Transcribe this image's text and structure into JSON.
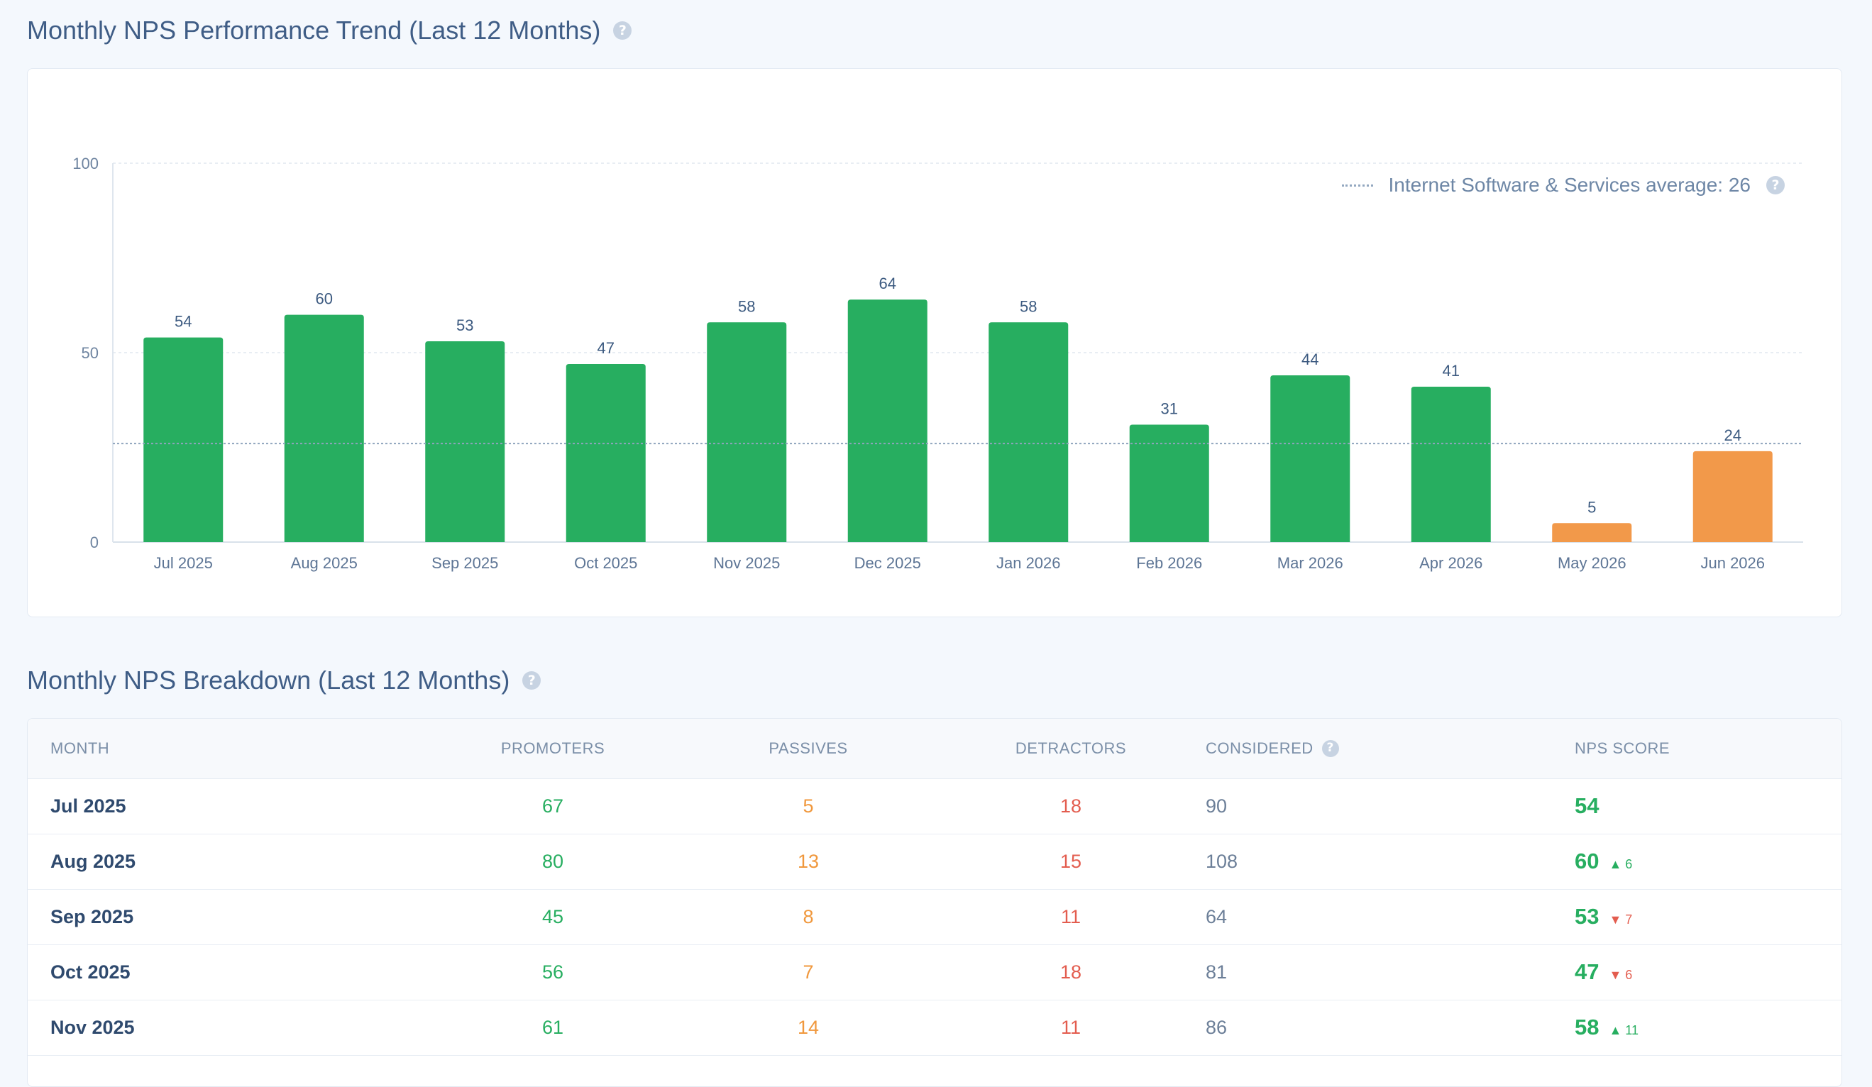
{
  "trend_section": {
    "title": "Monthly NPS Performance Trend (Last 12 Months)",
    "help_icon": "?"
  },
  "legend": {
    "label": "Internet Software & Services average: 26",
    "help_icon": "?"
  },
  "chart_data": {
    "type": "bar",
    "categories": [
      "Jul 2025",
      "Aug 2025",
      "Sep 2025",
      "Oct 2025",
      "Nov 2025",
      "Dec 2025",
      "Jan 2026",
      "Feb 2026",
      "Mar 2026",
      "Apr 2026",
      "May 2026",
      "Jun 2026"
    ],
    "values": [
      54,
      60,
      53,
      47,
      58,
      64,
      58,
      31,
      44,
      41,
      5,
      24
    ],
    "bar_colors": [
      "#27ae60",
      "#27ae60",
      "#27ae60",
      "#27ae60",
      "#27ae60",
      "#27ae60",
      "#27ae60",
      "#27ae60",
      "#27ae60",
      "#27ae60",
      "#f2994a",
      "#f2994a"
    ],
    "yticks": [
      0,
      50,
      100
    ],
    "ylim": [
      0,
      100
    ],
    "reference_line": {
      "value": 26
    },
    "grid": true,
    "legend_position": "top-right"
  },
  "breakdown_section": {
    "title": "Monthly NPS Breakdown (Last 12 Months)",
    "help_icon": "?"
  },
  "table": {
    "headers": {
      "month": "MONTH",
      "promoters": "PROMOTERS",
      "passives": "PASSIVES",
      "detractors": "DETRACTORS",
      "considered": "CONSIDERED",
      "nps_score": "NPS SCORE"
    },
    "rows": [
      {
        "month": "Jul 2025",
        "promoters": "67",
        "passives": "5",
        "detractors": "18",
        "considered": "90",
        "nps": "54",
        "delta": "",
        "dir": ""
      },
      {
        "month": "Aug 2025",
        "promoters": "80",
        "passives": "13",
        "detractors": "15",
        "considered": "108",
        "nps": "60",
        "delta": "▲ 6",
        "dir": "up"
      },
      {
        "month": "Sep 2025",
        "promoters": "45",
        "passives": "8",
        "detractors": "11",
        "considered": "64",
        "nps": "53",
        "delta": "▼ 7",
        "dir": "down"
      },
      {
        "month": "Oct 2025",
        "promoters": "56",
        "passives": "7",
        "detractors": "18",
        "considered": "81",
        "nps": "47",
        "delta": "▼ 6",
        "dir": "down"
      },
      {
        "month": "Nov 2025",
        "promoters": "61",
        "passives": "14",
        "detractors": "11",
        "considered": "86",
        "nps": "58",
        "delta": "▲ 11",
        "dir": "up"
      }
    ]
  },
  "colors": {
    "green": "#27ae60",
    "orange": "#f2994a",
    "red": "#e35d4f"
  }
}
